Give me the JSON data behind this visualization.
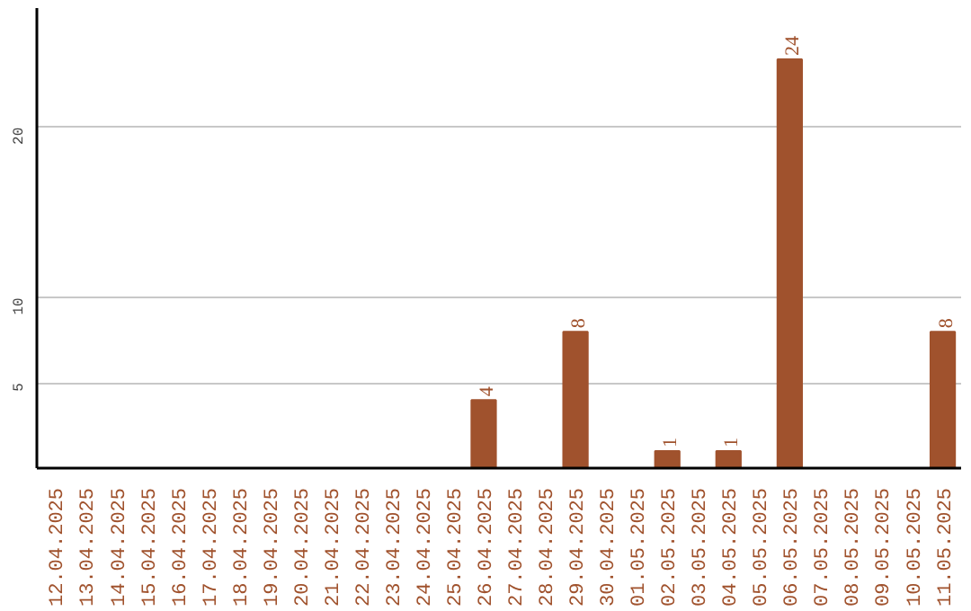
{
  "chart_data": {
    "type": "bar",
    "categories": [
      "12.04.2025",
      "13.04.2025",
      "14.04.2025",
      "15.04.2025",
      "16.04.2025",
      "17.04.2025",
      "18.04.2025",
      "19.04.2025",
      "20.04.2025",
      "21.04.2025",
      "22.04.2025",
      "23.04.2025",
      "24.04.2025",
      "25.04.2025",
      "26.04.2025",
      "27.04.2025",
      "28.04.2025",
      "29.04.2025",
      "30.04.2025",
      "01.05.2025",
      "02.05.2025",
      "03.05.2025",
      "04.05.2025",
      "05.05.2025",
      "06.05.2025",
      "07.05.2025",
      "08.05.2025",
      "09.05.2025",
      "10.05.2025",
      "11.05.2025"
    ],
    "values": [
      0,
      0,
      0,
      0,
      0,
      0,
      0,
      0,
      0,
      0,
      0,
      0,
      0,
      0,
      4,
      0,
      0,
      8,
      0,
      0,
      1,
      0,
      1,
      0,
      24,
      0,
      0,
      0,
      0,
      8
    ],
    "value_labels": [
      null,
      null,
      null,
      null,
      null,
      null,
      null,
      null,
      null,
      null,
      null,
      null,
      null,
      null,
      "4",
      null,
      null,
      "8",
      null,
      null,
      "1",
      null,
      "1",
      null,
      "24",
      null,
      null,
      null,
      null,
      "8"
    ],
    "color": "#a0522d",
    "ylim": [
      0,
      27
    ],
    "yticks": [
      5,
      10,
      20
    ],
    "grid": "y"
  }
}
